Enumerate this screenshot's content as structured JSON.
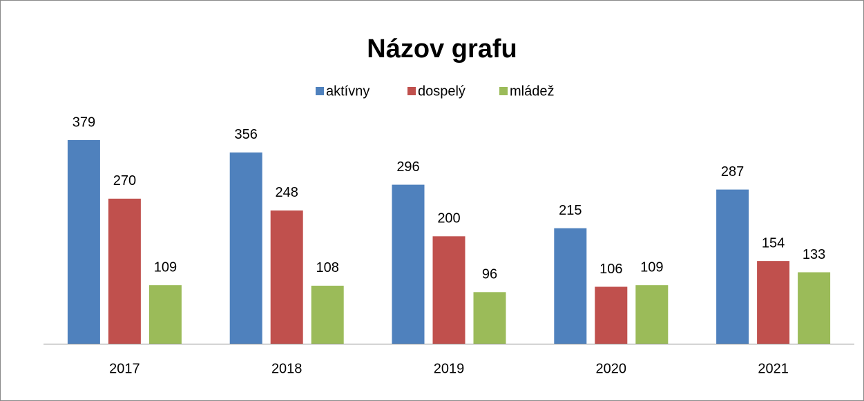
{
  "chart_data": {
    "type": "bar",
    "title": "Názov grafu",
    "categories": [
      "2017",
      "2018",
      "2019",
      "2020",
      "2021"
    ],
    "series": [
      {
        "name": "aktívny",
        "color": "#4f81bd",
        "values": [
          379,
          356,
          296,
          215,
          287
        ]
      },
      {
        "name": "dospelý",
        "color": "#c0504d",
        "values": [
          270,
          248,
          200,
          106,
          154
        ]
      },
      {
        "name": "mládež",
        "color": "#9bbb59",
        "values": [
          109,
          108,
          96,
          109,
          133
        ]
      }
    ],
    "legend": "top"
  }
}
